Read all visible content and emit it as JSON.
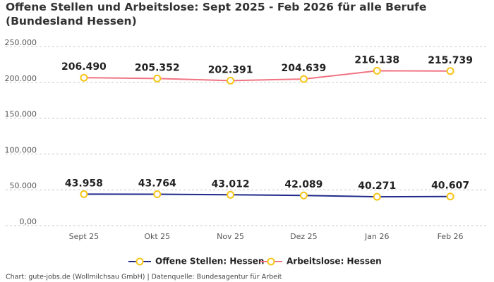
{
  "chart_data": {
    "type": "line",
    "title": "Offene Stellen und Arbeitslose: Sept 2025 - Feb 2026 für alle Berufe (Bundesland Hessen)",
    "source": "Chart: gute-jobs.de (Wollmilchsau GmbH) | Datenquelle: Bundesagentur für Arbeit",
    "categories": [
      "Sept 25",
      "Okt 25",
      "Nov 25",
      "Dez 25",
      "Jan 26",
      "Feb 26"
    ],
    "series": [
      {
        "name": "Offene Stellen: Hessen",
        "color": "#1f2a8a",
        "values": [
          43958,
          43764,
          43012,
          42089,
          40271,
          40607
        ],
        "value_labels": [
          "43.958",
          "43.764",
          "43.012",
          "42.089",
          "40.271",
          "40.607"
        ]
      },
      {
        "name": "Arbeitslose: Hessen",
        "color": "#f07382",
        "values": [
          206490,
          205352,
          202391,
          204639,
          216138,
          215739
        ],
        "value_labels": [
          "206.490",
          "205.352",
          "202.391",
          "204.639",
          "216.138",
          "215.739"
        ]
      }
    ],
    "marker_color": "#f5c518",
    "ylim": [
      0,
      250000
    ],
    "yticks": [
      {
        "value": 0,
        "label": "0,00"
      },
      {
        "value": 50000,
        "label": "50.000"
      },
      {
        "value": 100000,
        "label": "100.000"
      },
      {
        "value": 150000,
        "label": "150.000"
      },
      {
        "value": 200000,
        "label": "200.000"
      },
      {
        "value": 250000,
        "label": "250.000"
      }
    ],
    "grid": true,
    "legend": "bottom"
  }
}
